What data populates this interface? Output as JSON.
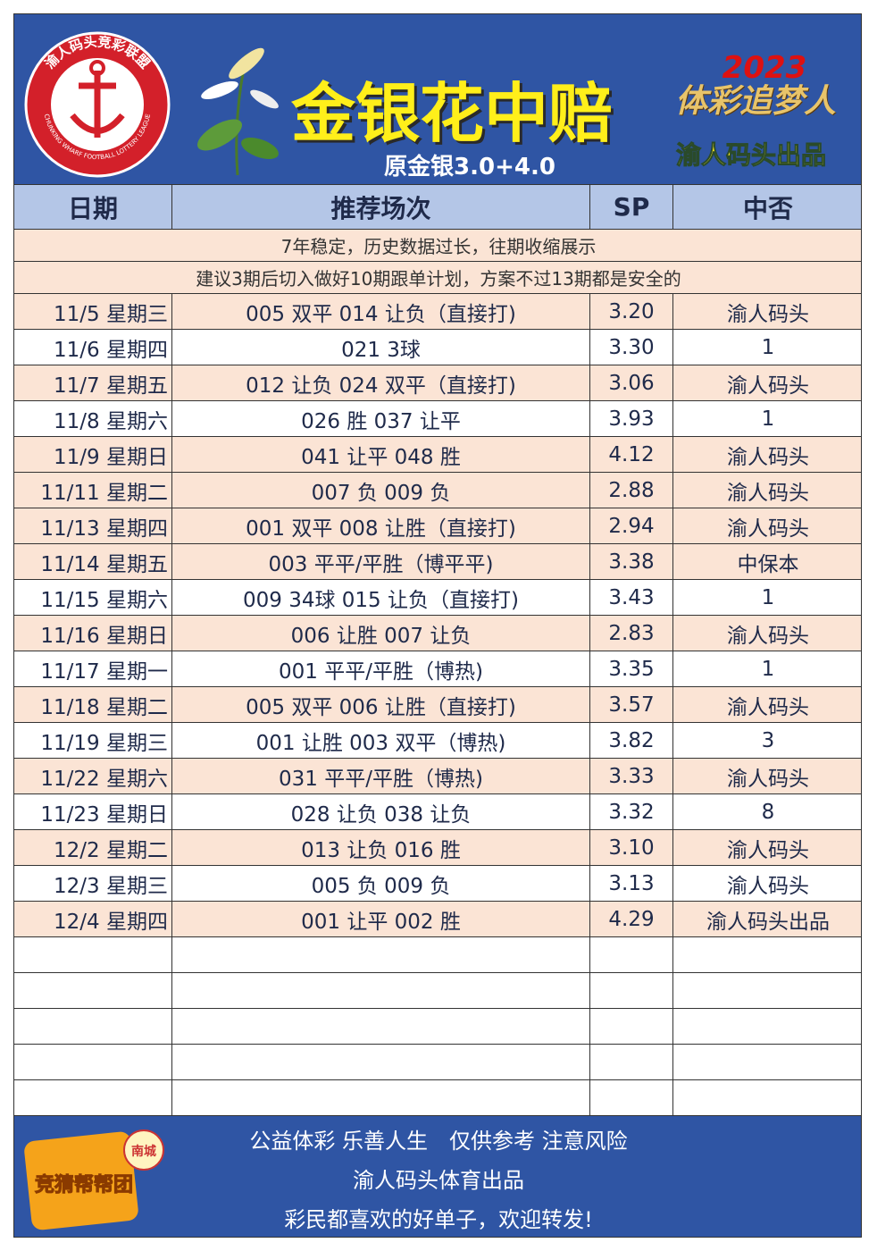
{
  "header": {
    "title": "金银花中赔",
    "subtitle": "原金银3.0+4.0",
    "logo_left_text": "渝人码头竞彩联盟",
    "logo_left_en": "CHUNKING WHARF FOOTBALL LOTTERY LEAGUE",
    "logo_right_year": "2023",
    "logo_right_text": "体彩追梦人",
    "producer": "渝人码头出品"
  },
  "table": {
    "columns": [
      "日期",
      "推荐场次",
      "SP",
      "中否"
    ],
    "notes": [
      "7年稳定，历史数据过长，往期收缩展示",
      "建议3期后切入做好10期跟单计划，方案不过13期都是安全的"
    ],
    "rows": [
      [
        "11/5 星期三",
        "005 双平 014 让负（直接打)",
        "3.20",
        "渝人码头"
      ],
      [
        "11/6 星期四",
        "021 3球",
        "3.30",
        "1"
      ],
      [
        "11/7 星期五",
        "012 让负 024 双平（直接打)",
        "3.06",
        "渝人码头"
      ],
      [
        "11/8 星期六",
        "026 胜 037 让平",
        "3.93",
        "1"
      ],
      [
        "11/9 星期日",
        "041 让平 048 胜",
        "4.12",
        "渝人码头"
      ],
      [
        "11/11 星期二",
        "007 负 009 负",
        "2.88",
        "渝人码头"
      ],
      [
        "11/13 星期四",
        "001 双平 008 让胜（直接打)",
        "2.94",
        "渝人码头"
      ],
      [
        "11/14 星期五",
        "003 平平/平胜（博平平)",
        "3.38",
        "中保本"
      ],
      [
        "11/15 星期六",
        "009 34球 015 让负（直接打)",
        "3.43",
        "1"
      ],
      [
        "11/16 星期日",
        "006 让胜 007 让负",
        "2.83",
        "渝人码头"
      ],
      [
        "11/17 星期一",
        "001 平平/平胜（博热)",
        "3.35",
        "1"
      ],
      [
        "11/18 星期二",
        "005 双平 006 让胜（直接打)",
        "3.57",
        "渝人码头"
      ],
      [
        "11/19 星期三",
        "001 让胜 003 双平（博热)",
        "3.82",
        "3"
      ],
      [
        "11/22 星期六",
        "031 平平/平胜（博热)",
        "3.33",
        "渝人码头"
      ],
      [
        "11/23 星期日",
        "028 让负 038 让负",
        "3.32",
        "8"
      ],
      [
        "12/2 星期二",
        "013 让负 016 胜",
        "3.10",
        "渝人码头"
      ],
      [
        "12/3 星期三",
        "005 负 009 负",
        "3.13",
        "渝人码头"
      ],
      [
        "12/4 星期四",
        "001 让平 002 胜",
        "4.29",
        "渝人码头出品"
      ]
    ],
    "shaded": [
      true,
      false,
      true,
      false,
      true,
      true,
      true,
      true,
      false,
      true,
      false,
      true,
      false,
      true,
      false,
      true,
      false,
      true
    ],
    "empty_rows": 5
  },
  "footer": {
    "badge_text": "竞猜帮帮团",
    "badge_tag": "南城",
    "lines": [
      "公益体彩 乐善人生　仅供参考 注意风险",
      "渝人码头体育出品",
      "彩民都喜欢的好单子，欢迎转发!"
    ]
  }
}
